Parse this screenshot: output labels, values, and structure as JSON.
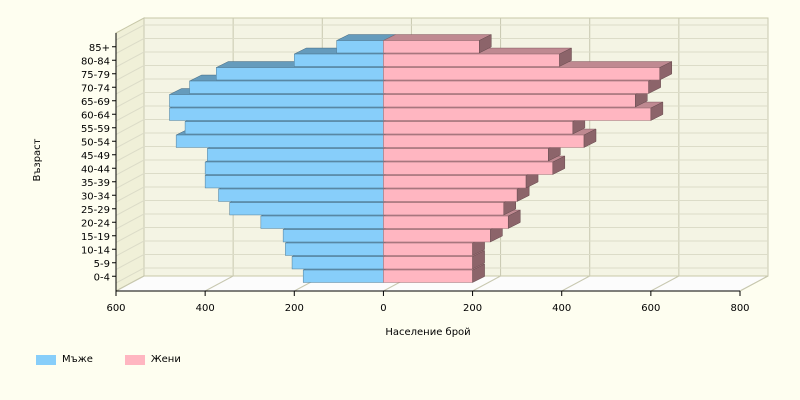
{
  "chart_data": {
    "type": "bar",
    "orientation": "horizontal",
    "style": "population pyramid, 3D",
    "categories": [
      "0-4",
      "5-9",
      "10-14",
      "15-19",
      "20-24",
      "25-29",
      "30-34",
      "35-39",
      "40-44",
      "45-49",
      "50-54",
      "55-59",
      "60-64",
      "65-69",
      "70-74",
      "75-79",
      "80-84",
      "85+"
    ],
    "series": [
      {
        "name": "Мъже",
        "color": "#87cefa",
        "values": [
          -180,
          -205,
          -220,
          -225,
          -275,
          -345,
          -370,
          -400,
          -400,
          -395,
          -465,
          -445,
          -480,
          -480,
          -435,
          -375,
          -200,
          -105
        ]
      },
      {
        "name": "Жени",
        "color": "#ffb6c1",
        "values": [
          200,
          200,
          200,
          240,
          280,
          270,
          300,
          320,
          380,
          370,
          450,
          425,
          600,
          565,
          595,
          620,
          395,
          215
        ]
      }
    ],
    "xlim": [
      -600,
      800
    ],
    "xticks": [
      -600,
      -400,
      -200,
      0,
      200,
      400,
      600,
      800
    ],
    "xtick_labels": [
      "600",
      "400",
      "200",
      "0",
      "200",
      "400",
      "600",
      "800"
    ],
    "xlabel": "Население брой",
    "ylabel": "Възраст",
    "grid": true,
    "legend_position": "bottom-left"
  }
}
